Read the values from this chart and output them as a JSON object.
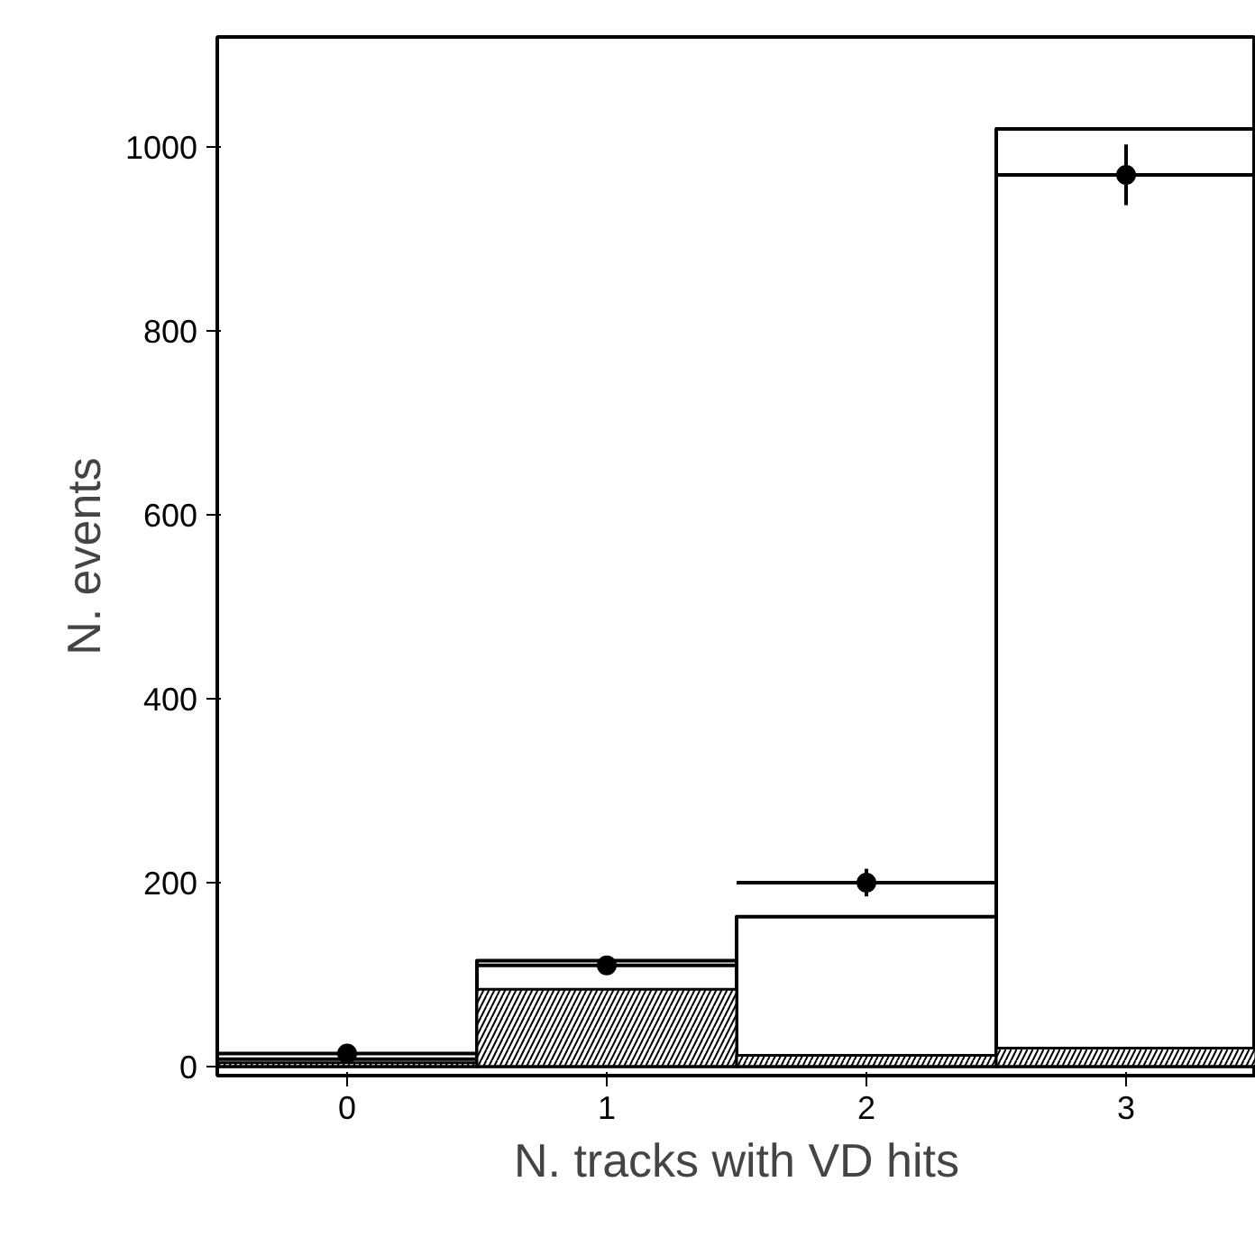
{
  "chart_data": {
    "type": "histogram",
    "xlabel": "N. tracks with VD hits",
    "ylabel": "N. events",
    "bins": [
      -0.5,
      0.5,
      1.5,
      2.5,
      3.5
    ],
    "series": [
      {
        "color": "#000000",
        "values": [
          8,
          115,
          163,
          1020
        ]
      },
      {
        "type": "bar",
        "color": "#000000",
        "x": [
          0,
          1,
          2,
          3
        ],
        "values": [
          4,
          84,
          12,
          20
        ]
      },
      {
        "type": "scatter",
        "color": "#000000",
        "x": [
          0,
          1,
          2,
          3
        ],
        "values": [
          14,
          110,
          200,
          970
        ],
        "errors": [
          null,
          10,
          15,
          33
        ],
        "xerrors": [
          0.5,
          0.5,
          0.5,
          0.5
        ]
      }
    ],
    "xlim": [
      -0.5,
      3.5
    ],
    "ylim": [
      -10,
      1120
    ],
    "xticks": [
      0,
      1,
      2,
      3
    ],
    "yticks": [
      0,
      200,
      400,
      600,
      800,
      1000
    ],
    "marker": "circle",
    "grid": false
  }
}
